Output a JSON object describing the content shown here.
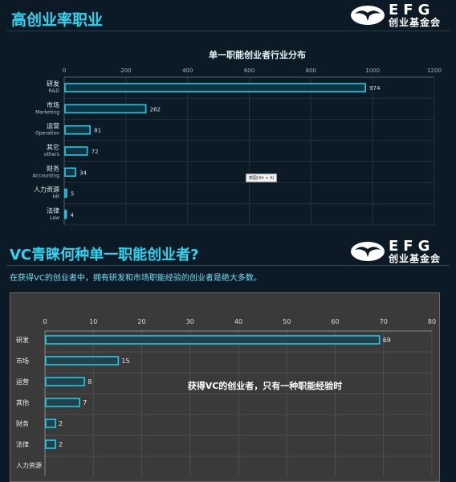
{
  "section1": {
    "title": "高创业率职业"
  },
  "section2": {
    "title": "VC青睐何种单一职能创业者?",
    "subtitle": "在获得VC的创业者中，拥有研发和市场职能经验的创业者是绝大多数。",
    "annotation": "获得VC的创业者，只有一种职能经验时"
  },
  "logo": {
    "letters": "EFG",
    "name": "创业基金会"
  },
  "tooltip": "截图(Alt + A)",
  "colors": {
    "accent": "#2fd4f2",
    "bar_outline": "#24c8e8",
    "background": "#0b1a24",
    "panel_gray": "#3a3a3a"
  },
  "chart_data": [
    {
      "type": "bar",
      "orientation": "horizontal",
      "title": "单一职能创业者行业分布",
      "categories": [
        "研发",
        "市场",
        "运营",
        "其它",
        "财务",
        "人力资源",
        "法律"
      ],
      "categories_en": [
        "R&D",
        "Marketing",
        "Operation",
        "others",
        "Accounting",
        "HR",
        "Law"
      ],
      "values": [
        974,
        262,
        81,
        72,
        34,
        5,
        4
      ],
      "xlim": [
        0,
        1200
      ],
      "xticks": [
        0,
        200,
        400,
        600,
        800,
        1000,
        1200
      ],
      "xaxis_position": "top",
      "grid": true
    },
    {
      "type": "bar",
      "orientation": "horizontal",
      "categories": [
        "研发",
        "市场",
        "运营",
        "其他",
        "财务",
        "法律",
        "人力资源"
      ],
      "values": [
        69,
        15,
        8,
        7,
        2,
        2,
        null
      ],
      "xlim": [
        0,
        80
      ],
      "xticks": [
        0,
        10,
        20,
        30,
        40,
        50,
        60,
        70,
        80
      ],
      "xaxis_position": "top",
      "grid": true
    }
  ]
}
